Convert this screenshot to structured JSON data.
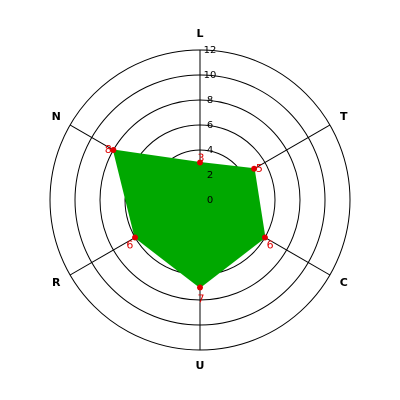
{
  "chart_data": {
    "type": "radar",
    "categories": [
      "L",
      "T",
      "C",
      "U",
      "R",
      "N"
    ],
    "values": [
      3,
      5,
      6,
      7,
      6,
      8
    ],
    "color": "#00a800",
    "marker_color": "#e00000",
    "rlim": [
      0,
      12
    ],
    "rticks": [
      0,
      2,
      4,
      6,
      8,
      10,
      12
    ]
  }
}
